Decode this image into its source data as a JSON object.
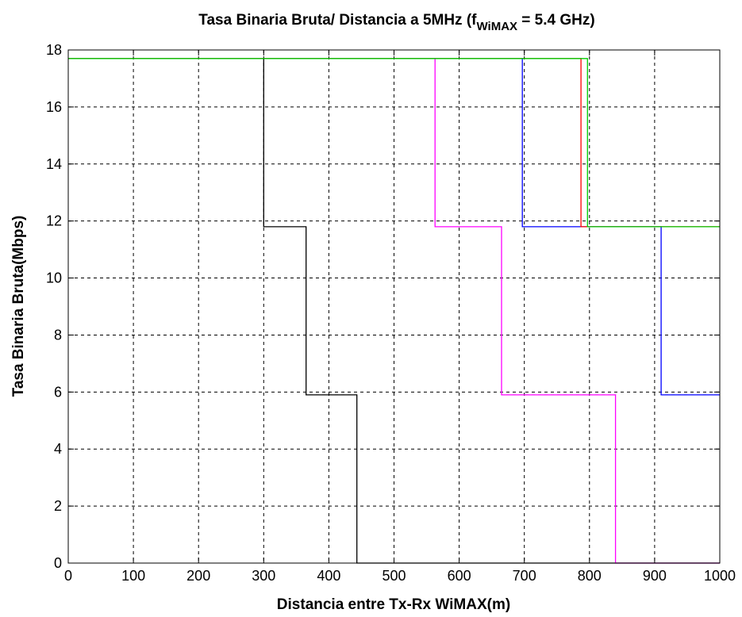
{
  "chart_data": {
    "type": "line",
    "title": {
      "prefix": "Tasa Binaria Bruta/ Distancia a 5MHz (f",
      "subscript": "WiMAX",
      "suffix": " = 5.4 GHz)"
    },
    "xlabel": "Distancia entre Tx-Rx WiMAX(m)",
    "ylabel": "Tasa Binaria Bruta(Mbps)",
    "xlim": [
      0,
      1000
    ],
    "ylim": [
      0,
      18
    ],
    "xticks": [
      0,
      100,
      200,
      300,
      400,
      500,
      600,
      700,
      800,
      900,
      1000
    ],
    "yticks": [
      0,
      2,
      4,
      6,
      8,
      10,
      12,
      14,
      16,
      18
    ],
    "grid": true,
    "series": [
      {
        "color": "#000000",
        "x": [
          0,
          300,
          300,
          365,
          365,
          443,
          443,
          1000
        ],
        "y": [
          17.7,
          17.7,
          11.8,
          11.8,
          5.9,
          5.9,
          0,
          0
        ]
      },
      {
        "color": "#ff00ff",
        "x": [
          0,
          563,
          563,
          665,
          665,
          840,
          840,
          1000
        ],
        "y": [
          17.7,
          17.7,
          11.8,
          11.8,
          5.9,
          5.9,
          0,
          0
        ]
      },
      {
        "color": "#0000ff",
        "x": [
          0,
          697,
          697,
          910,
          910,
          1000
        ],
        "y": [
          17.7,
          17.7,
          11.8,
          11.8,
          5.9,
          5.9
        ]
      },
      {
        "color": "#ff0000",
        "x": [
          0,
          787,
          787,
          1000
        ],
        "y": [
          17.7,
          17.7,
          11.8,
          11.8
        ]
      },
      {
        "color": "#00cc00",
        "x": [
          0,
          797,
          797,
          1000
        ],
        "y": [
          17.7,
          17.7,
          11.8,
          11.8
        ]
      }
    ]
  }
}
